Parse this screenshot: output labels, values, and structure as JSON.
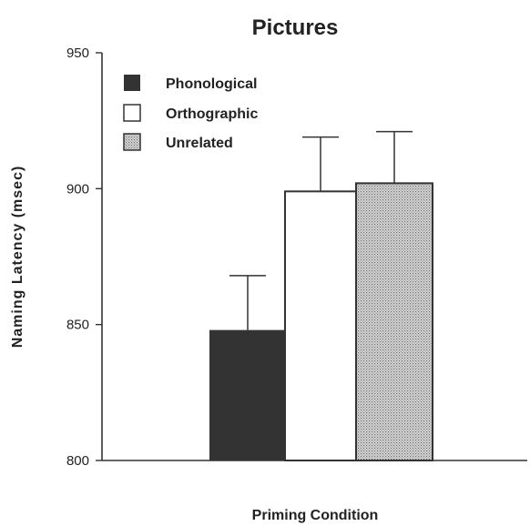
{
  "chart_data": {
    "type": "bar",
    "title": "Pictures",
    "xlabel": "Priming Condition",
    "ylabel": "Naming Latency (msec)",
    "ylim": [
      800,
      950
    ],
    "yticks": [
      800,
      850,
      900,
      950
    ],
    "grid": false,
    "legend_position": "top-left",
    "series": [
      {
        "name": "Phonological",
        "value": 848,
        "error": 20,
        "fill": "solid",
        "color": "#333333"
      },
      {
        "name": "Orthographic",
        "value": 899,
        "error": 20,
        "fill": "none",
        "color": "#ffffff"
      },
      {
        "name": "Unrelated",
        "value": 902,
        "error": 19,
        "fill": "dotted",
        "color": "#bdbdbd"
      }
    ]
  }
}
